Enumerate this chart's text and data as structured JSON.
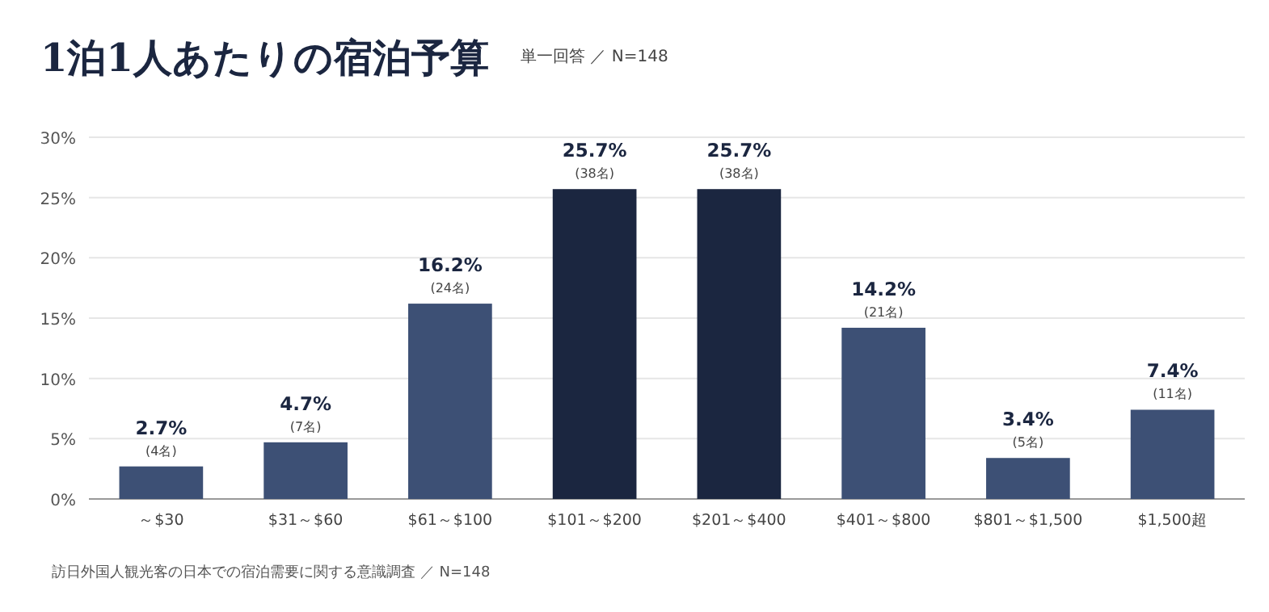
{
  "chart_data": {
    "type": "bar",
    "title": "1泊1人あたりの宿泊予算",
    "subtitle": "単一回答 ／ N=148",
    "categories": [
      "～$30",
      "$31～$60",
      "$61～$100",
      "$101～$200",
      "$201～$400",
      "$401～$800",
      "$801～$1,500",
      "$1,500超"
    ],
    "values": [
      2.7,
      4.7,
      16.2,
      25.7,
      25.7,
      14.2,
      3.4,
      7.4
    ],
    "colors": [
      "#3d5075",
      "#3d5075",
      "#3d5075",
      "#1b2640",
      "#1b2640",
      "#3d5075",
      "#3d5075",
      "#3d5075"
    ],
    "value_labels": [
      "2.7%",
      "4.7%",
      "16.2%",
      "25.7%",
      "25.7%",
      "14.2%",
      "3.4%",
      "7.4%"
    ],
    "ylim": [
      0,
      30
    ],
    "yticks": [
      {
        "value": 0,
        "label": "0%"
      },
      {
        "value": 5,
        "label": "5%"
      },
      {
        "value": 10,
        "label": "10%"
      },
      {
        "value": 15,
        "label": "15%"
      },
      {
        "value": 20,
        "label": "20%"
      },
      {
        "value": 25,
        "label": "25%"
      },
      {
        "value": 30,
        "label": "30%"
      }
    ],
    "grid": "y",
    "annotations": [
      {
        "text": "(4名)",
        "x": "～$30",
        "y": 2.7
      },
      {
        "text": "(7名)",
        "x": "$31～$60",
        "y": 4.7
      },
      {
        "text": "(24名)",
        "x": "$61～$100",
        "y": 16.2
      },
      {
        "text": "(38名)",
        "x": "$101～$200",
        "y": 25.7
      },
      {
        "text": "(38名)",
        "x": "$201～$400",
        "y": 25.7
      },
      {
        "text": "(21名)",
        "x": "$401～$800",
        "y": 14.2
      },
      {
        "text": "(5名)",
        "x": "$801～$1,500",
        "y": 3.4
      },
      {
        "text": "(11名)",
        "x": "$1,500超",
        "y": 7.4
      },
      "訪日外国人観光客の日本での宿泊需要に関する意識調査 ／ N=148"
    ]
  }
}
